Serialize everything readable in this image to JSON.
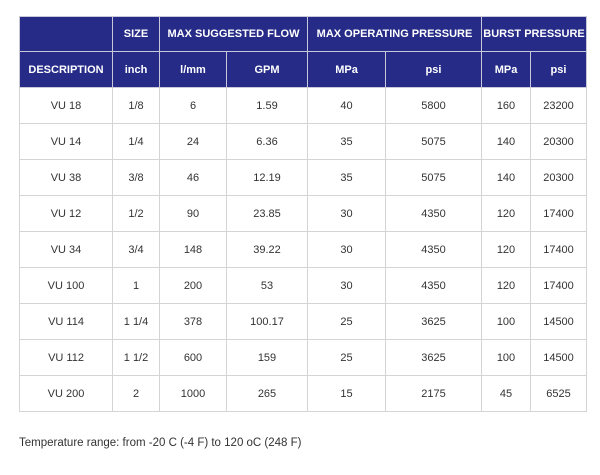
{
  "header": {
    "group_row": {
      "size": "SIZE",
      "flow": "MAX SUGGESTED FLOW",
      "operating": "MAX OPERATING PRESSURE",
      "burst": "BURST PRESSURE"
    },
    "unit_row": {
      "description": "DESCRIPTION",
      "inch": "inch",
      "lmm": "l/mm",
      "gpm": "GPM",
      "op_mpa": "MPa",
      "op_psi": "psi",
      "burst_mpa": "MPa",
      "burst_psi": "psi"
    }
  },
  "rows": [
    {
      "description": "VU 18",
      "inch": "1/8",
      "lmm": "6",
      "gpm": "1.59",
      "op_mpa": "40",
      "op_psi": "5800",
      "burst_mpa": "160",
      "burst_psi": "23200"
    },
    {
      "description": "VU 14",
      "inch": "1/4",
      "lmm": "24",
      "gpm": "6.36",
      "op_mpa": "35",
      "op_psi": "5075",
      "burst_mpa": "140",
      "burst_psi": "20300"
    },
    {
      "description": "VU 38",
      "inch": "3/8",
      "lmm": "46",
      "gpm": "12.19",
      "op_mpa": "35",
      "op_psi": "5075",
      "burst_mpa": "140",
      "burst_psi": "20300"
    },
    {
      "description": "VU 12",
      "inch": "1/2",
      "lmm": "90",
      "gpm": "23.85",
      "op_mpa": "30",
      "op_psi": "4350",
      "burst_mpa": "120",
      "burst_psi": "17400"
    },
    {
      "description": "VU 34",
      "inch": "3/4",
      "lmm": "148",
      "gpm": "39.22",
      "op_mpa": "30",
      "op_psi": "4350",
      "burst_mpa": "120",
      "burst_psi": "17400"
    },
    {
      "description": "VU 100",
      "inch": "1",
      "lmm": "200",
      "gpm": "53",
      "op_mpa": "30",
      "op_psi": "4350",
      "burst_mpa": "120",
      "burst_psi": "17400"
    },
    {
      "description": "VU 114",
      "inch": "1 1/4",
      "lmm": "378",
      "gpm": "100.17",
      "op_mpa": "25",
      "op_psi": "3625",
      "burst_mpa": "100",
      "burst_psi": "14500"
    },
    {
      "description": "VU 112",
      "inch": "1 1/2",
      "lmm": "600",
      "gpm": "159",
      "op_mpa": "25",
      "op_psi": "3625",
      "burst_mpa": "100",
      "burst_psi": "14500"
    },
    {
      "description": "VU 200",
      "inch": "2",
      "lmm": "1000",
      "gpm": "265",
      "op_mpa": "15",
      "op_psi": "2175",
      "burst_mpa": "45",
      "burst_psi": "6525"
    }
  ],
  "footnote": "Temperature range: from -20 C (-4 F) to 120 oC (248 F)",
  "colors": {
    "header_bg": "#252b87",
    "header_text": "#ffffff",
    "body_text": "#333333",
    "grid": "#d4d4d4"
  }
}
